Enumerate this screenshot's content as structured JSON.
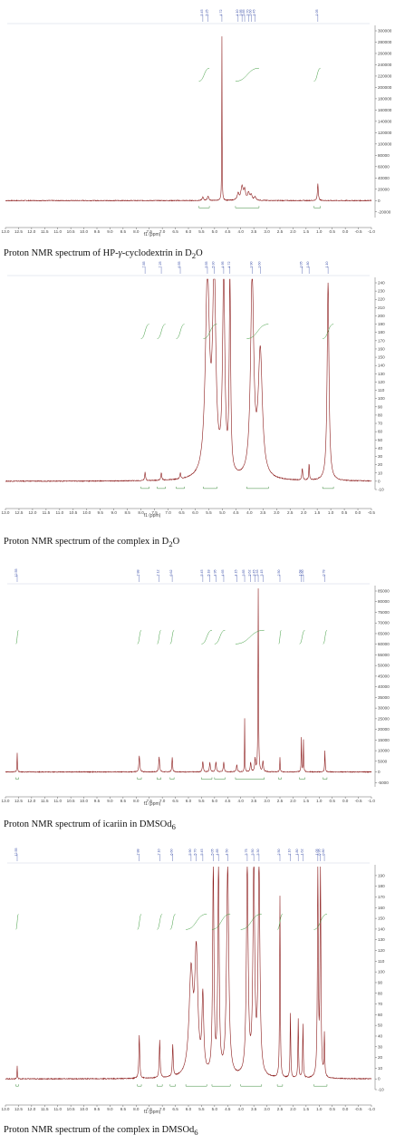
{
  "chart_data": [
    {
      "type": "line",
      "caption_main": "Proton NMR spectrum of HP-",
      "caption_gamma": "γ",
      "caption_rest": "-cyclodextrin in D",
      "caption_sub": "2",
      "caption_end": "O",
      "xlabel": "f1 (ppm)",
      "xlim": [
        13.0,
        -1.0
      ],
      "xticks": [
        13.0,
        12.5,
        12.0,
        11.5,
        11.0,
        10.5,
        10.0,
        9.5,
        9.0,
        8.5,
        8.0,
        7.5,
        7.0,
        6.5,
        6.0,
        5.5,
        5.0,
        4.5,
        4.0,
        3.5,
        3.0,
        2.5,
        2.0,
        1.5,
        1.0,
        0.5,
        0.0,
        -0.5,
        -1.0
      ],
      "xtick_labels": [
        "13.0",
        "12.5",
        "12.0",
        "11.5",
        "11.0",
        "10.5",
        "10.0",
        "9.5",
        "9.0",
        "8.5",
        "8.0",
        "7.5",
        "7.0",
        "6.5",
        "6.0",
        "5.5",
        "5.0",
        "4.5",
        "4.0",
        "3.5",
        "3.0",
        "2.5",
        "2.0",
        "1.5",
        "1.0",
        "0.5",
        "0.0",
        "-0.5",
        "-1.0"
      ],
      "ylim": [
        -30000,
        300000
      ],
      "yticks": [
        300000,
        280000,
        260000,
        240000,
        220000,
        200000,
        180000,
        160000,
        140000,
        120000,
        100000,
        80000,
        60000,
        40000,
        20000,
        0,
        -20000
      ],
      "ytick_labels": [
        "300000",
        "280000",
        "260000",
        "240000",
        "220000",
        "200000",
        "180000",
        "160000",
        "140000",
        "120000",
        "100000",
        "80000",
        "60000",
        "40000",
        "20000",
        "0",
        "-20000"
      ],
      "series": [
        {
          "peaks": [
            {
              "ppm": 5.45,
              "height": 6000,
              "width": 0.03
            },
            {
              "ppm": 5.25,
              "height": 8000,
              "width": 0.03
            },
            {
              "ppm": 4.72,
              "height": 290000,
              "width": 0.008
            },
            {
              "ppm": 4.1,
              "height": 12000,
              "width": 0.04
            },
            {
              "ppm": 3.95,
              "height": 24000,
              "width": 0.05
            },
            {
              "ppm": 3.85,
              "height": 17000,
              "width": 0.04
            },
            {
              "ppm": 3.7,
              "height": 13000,
              "width": 0.04
            },
            {
              "ppm": 3.6,
              "height": 9000,
              "width": 0.04
            },
            {
              "ppm": 3.45,
              "height": 6000,
              "width": 0.04
            },
            {
              "ppm": 1.05,
              "height": 30000,
              "width": 0.02
            }
          ]
        }
      ],
      "integral_segments": [
        [
          5.6,
          5.2
        ],
        [
          4.2,
          3.3
        ],
        [
          1.2,
          0.95
        ]
      ]
    },
    {
      "type": "line",
      "caption_main": "Proton NMR spectrum of the complex in D",
      "caption_sub": "2",
      "caption_end": "O",
      "xlabel": "f1 (ppm)",
      "xlim": [
        13.0,
        -0.5
      ],
      "xticks": [
        13.0,
        12.5,
        12.0,
        11.5,
        11.0,
        10.5,
        10.0,
        9.5,
        9.0,
        8.5,
        8.0,
        7.5,
        7.0,
        6.5,
        6.0,
        5.5,
        5.0,
        4.5,
        4.0,
        3.5,
        3.0,
        2.5,
        2.0,
        1.5,
        1.0,
        0.5,
        0.0,
        -0.5
      ],
      "xtick_labels": [
        "13.0",
        "12.5",
        "12.0",
        "11.5",
        "11.0",
        "10.5",
        "10.0",
        "9.5",
        "9.0",
        "8.5",
        "8.0",
        "7.5",
        "7.0",
        "6.5",
        "6.0",
        "5.5",
        "5.0",
        "4.5",
        "4.0",
        "3.5",
        "3.0",
        "2.5",
        "2.0",
        "1.5",
        "1.0",
        "0.5",
        "0.0",
        "-0.5"
      ],
      "ylim": [
        -10,
        240
      ],
      "yticks": [
        240,
        230,
        220,
        210,
        200,
        190,
        180,
        170,
        160,
        150,
        140,
        130,
        120,
        110,
        100,
        90,
        80,
        70,
        60,
        50,
        40,
        30,
        20,
        10,
        0,
        -10
      ],
      "ytick_labels": [
        "240",
        "230",
        "220",
        "210",
        "200",
        "190",
        "180",
        "170",
        "160",
        "150",
        "140",
        "130",
        "120",
        "110",
        "100",
        "90",
        "80",
        "70",
        "60",
        "50",
        "40",
        "30",
        "20",
        "10",
        "0",
        "-10"
      ],
      "series": [
        {
          "peaks": [
            {
              "ppm": 7.85,
              "height": 10,
              "width": 0.02
            },
            {
              "ppm": 7.25,
              "height": 9,
              "width": 0.02
            },
            {
              "ppm": 6.55,
              "height": 7,
              "width": 0.02
            },
            {
              "ppm": 5.55,
              "height": 240,
              "width": 0.09
            },
            {
              "ppm": 5.3,
              "height": 240,
              "width": 0.07
            },
            {
              "ppm": 4.95,
              "height": 240,
              "width": 0.05
            },
            {
              "ppm": 4.72,
              "height": 240,
              "width": 0.03
            },
            {
              "ppm": 3.9,
              "height": 240,
              "width": 0.07
            },
            {
              "ppm": 3.6,
              "height": 150,
              "width": 0.09
            },
            {
              "ppm": 2.05,
              "height": 14,
              "width": 0.02
            },
            {
              "ppm": 1.8,
              "height": 20,
              "width": 0.015
            },
            {
              "ppm": 1.1,
              "height": 240,
              "width": 0.04
            }
          ]
        }
      ],
      "integral_segments": [
        [
          8.0,
          7.7
        ],
        [
          7.4,
          7.1
        ],
        [
          6.7,
          6.4
        ],
        [
          5.7,
          5.2
        ],
        [
          4.1,
          3.3
        ],
        [
          1.3,
          0.9
        ]
      ]
    },
    {
      "type": "line",
      "caption_main": "Proton NMR spectrum of icariin in DMSOd",
      "caption_sub": "6",
      "caption_end": "",
      "xlabel": "f1 (ppm)",
      "xlim": [
        13.0,
        -1.0
      ],
      "xticks": [
        13.0,
        12.5,
        12.0,
        11.5,
        11.0,
        10.5,
        10.0,
        9.5,
        9.0,
        8.5,
        8.0,
        7.5,
        7.0,
        6.5,
        6.0,
        5.5,
        5.0,
        4.5,
        4.0,
        3.5,
        3.0,
        2.5,
        2.0,
        1.5,
        1.0,
        0.5,
        0.0,
        -0.5,
        -1.0
      ],
      "xtick_labels": [
        "13.0",
        "12.5",
        "12.0",
        "11.5",
        "11.0",
        "10.5",
        "10.0",
        "9.5",
        "9.0",
        "8.5",
        "8.0",
        "7.5",
        "7.0",
        "6.5",
        "6.0",
        "5.5",
        "5.0",
        "4.5",
        "4.0",
        "3.5",
        "3.0",
        "2.5",
        "2.0",
        "1.5",
        "1.0",
        "0.5",
        "0.0",
        "-0.5",
        "-1.0"
      ],
      "ylim": [
        -7000,
        85000
      ],
      "yticks": [
        85000,
        80000,
        75000,
        70000,
        65000,
        60000,
        55000,
        50000,
        45000,
        40000,
        35000,
        30000,
        25000,
        20000,
        15000,
        10000,
        5000,
        0,
        -5000
      ],
      "ytick_labels": [
        "85000",
        "80000",
        "75000",
        "70000",
        "65000",
        "60000",
        "55000",
        "50000",
        "45000",
        "40000",
        "35000",
        "30000",
        "25000",
        "20000",
        "15000",
        "10000",
        "5000",
        "0",
        "-5000"
      ],
      "series": [
        {
          "peaks": [
            {
              "ppm": 12.55,
              "height": 9000,
              "width": 0.01
            },
            {
              "ppm": 7.88,
              "height": 7500,
              "width": 0.02
            },
            {
              "ppm": 7.12,
              "height": 7000,
              "width": 0.02
            },
            {
              "ppm": 6.62,
              "height": 7000,
              "width": 0.015
            },
            {
              "ppm": 5.45,
              "height": 5000,
              "width": 0.02
            },
            {
              "ppm": 5.18,
              "height": 4500,
              "width": 0.02
            },
            {
              "ppm": 4.95,
              "height": 4800,
              "width": 0.02
            },
            {
              "ppm": 4.65,
              "height": 4500,
              "width": 0.02
            },
            {
              "ppm": 4.15,
              "height": 3500,
              "width": 0.02
            },
            {
              "ppm": 3.85,
              "height": 25000,
              "width": 0.008
            },
            {
              "ppm": 3.62,
              "height": 4500,
              "width": 0.02
            },
            {
              "ppm": 3.45,
              "height": 6000,
              "width": 0.02
            },
            {
              "ppm": 3.33,
              "height": 86000,
              "width": 0.012
            },
            {
              "ppm": 3.15,
              "height": 5000,
              "width": 0.02
            },
            {
              "ppm": 2.5,
              "height": 7000,
              "width": 0.01
            },
            {
              "ppm": 1.68,
              "height": 16000,
              "width": 0.01
            },
            {
              "ppm": 1.6,
              "height": 15000,
              "width": 0.01
            },
            {
              "ppm": 0.78,
              "height": 10000,
              "width": 0.012
            }
          ]
        }
      ],
      "integral_segments": [
        [
          12.6,
          12.5
        ],
        [
          7.95,
          7.8
        ],
        [
          7.2,
          7.05
        ],
        [
          6.7,
          6.55
        ],
        [
          5.5,
          5.1
        ],
        [
          5.0,
          4.6
        ],
        [
          4.2,
          3.1
        ],
        [
          2.55,
          2.45
        ],
        [
          1.75,
          1.55
        ],
        [
          0.85,
          0.7
        ]
      ]
    },
    {
      "type": "line",
      "caption_main": "Proton NMR spectrum of the complex in DMSOd",
      "caption_sub": "6",
      "caption_end": "",
      "xlabel": "f1 (ppm)",
      "xlim": [
        13.0,
        -1.0
      ],
      "xticks": [
        13.0,
        12.5,
        12.0,
        11.5,
        11.0,
        10.5,
        10.0,
        9.5,
        9.0,
        8.5,
        8.0,
        7.5,
        7.0,
        6.5,
        6.0,
        5.5,
        5.0,
        4.5,
        4.0,
        3.5,
        3.0,
        2.5,
        2.0,
        1.5,
        1.0,
        0.5,
        0.0,
        -0.5,
        -1.0
      ],
      "xtick_labels": [
        "13.0",
        "12.5",
        "12.0",
        "11.5",
        "11.0",
        "10.5",
        "10.0",
        "9.5",
        "9.0",
        "8.5",
        "8.0",
        "7.5",
        "7.0",
        "6.5",
        "6.0",
        "5.5",
        "5.0",
        "4.5",
        "4.0",
        "3.5",
        "3.0",
        "2.5",
        "2.0",
        "1.5",
        "1.0",
        "0.5",
        "0.0",
        "-0.5",
        "-1.0"
      ],
      "ylim": [
        -10,
        195
      ],
      "yticks": [
        190,
        180,
        170,
        160,
        150,
        140,
        130,
        120,
        110,
        100,
        90,
        80,
        70,
        60,
        50,
        40,
        30,
        20,
        10,
        0,
        -10
      ],
      "ytick_labels": [
        "190",
        "180",
        "170",
        "160",
        "150",
        "140",
        "130",
        "120",
        "110",
        "100",
        "90",
        "80",
        "70",
        "60",
        "50",
        "40",
        "30",
        "20",
        "10",
        "0",
        "-10"
      ],
      "series": [
        {
          "peaks": [
            {
              "ppm": 12.55,
              "height": 12,
              "width": 0.01
            },
            {
              "ppm": 7.88,
              "height": 40,
              "width": 0.02
            },
            {
              "ppm": 7.1,
              "height": 35,
              "width": 0.02
            },
            {
              "ppm": 6.6,
              "height": 30,
              "width": 0.02
            },
            {
              "ppm": 5.9,
              "height": 95,
              "width": 0.09
            },
            {
              "ppm": 5.7,
              "height": 110,
              "width": 0.07
            },
            {
              "ppm": 5.45,
              "height": 70,
              "width": 0.04
            },
            {
              "ppm": 5.05,
              "height": 195,
              "width": 0.03
            },
            {
              "ppm": 4.85,
              "height": 195,
              "width": 0.03
            },
            {
              "ppm": 4.5,
              "height": 195,
              "width": 0.05
            },
            {
              "ppm": 3.75,
              "height": 195,
              "width": 0.04
            },
            {
              "ppm": 3.5,
              "height": 195,
              "width": 0.04
            },
            {
              "ppm": 3.3,
              "height": 195,
              "width": 0.04
            },
            {
              "ppm": 2.5,
              "height": 170,
              "width": 0.015
            },
            {
              "ppm": 2.1,
              "height": 60,
              "width": 0.015
            },
            {
              "ppm": 1.8,
              "height": 55,
              "width": 0.015
            },
            {
              "ppm": 1.62,
              "height": 50,
              "width": 0.015
            },
            {
              "ppm": 1.05,
              "height": 195,
              "width": 0.02
            },
            {
              "ppm": 0.95,
              "height": 195,
              "width": 0.02
            },
            {
              "ppm": 0.8,
              "height": 40,
              "width": 0.015
            }
          ]
        }
      ],
      "integral_segments": [
        [
          12.6,
          12.5
        ],
        [
          7.95,
          7.8
        ],
        [
          7.2,
          7.0
        ],
        [
          6.7,
          6.5
        ],
        [
          6.1,
          5.3
        ],
        [
          5.1,
          4.4
        ],
        [
          4.0,
          3.2
        ],
        [
          2.6,
          2.4
        ],
        [
          1.2,
          0.7
        ]
      ]
    }
  ]
}
